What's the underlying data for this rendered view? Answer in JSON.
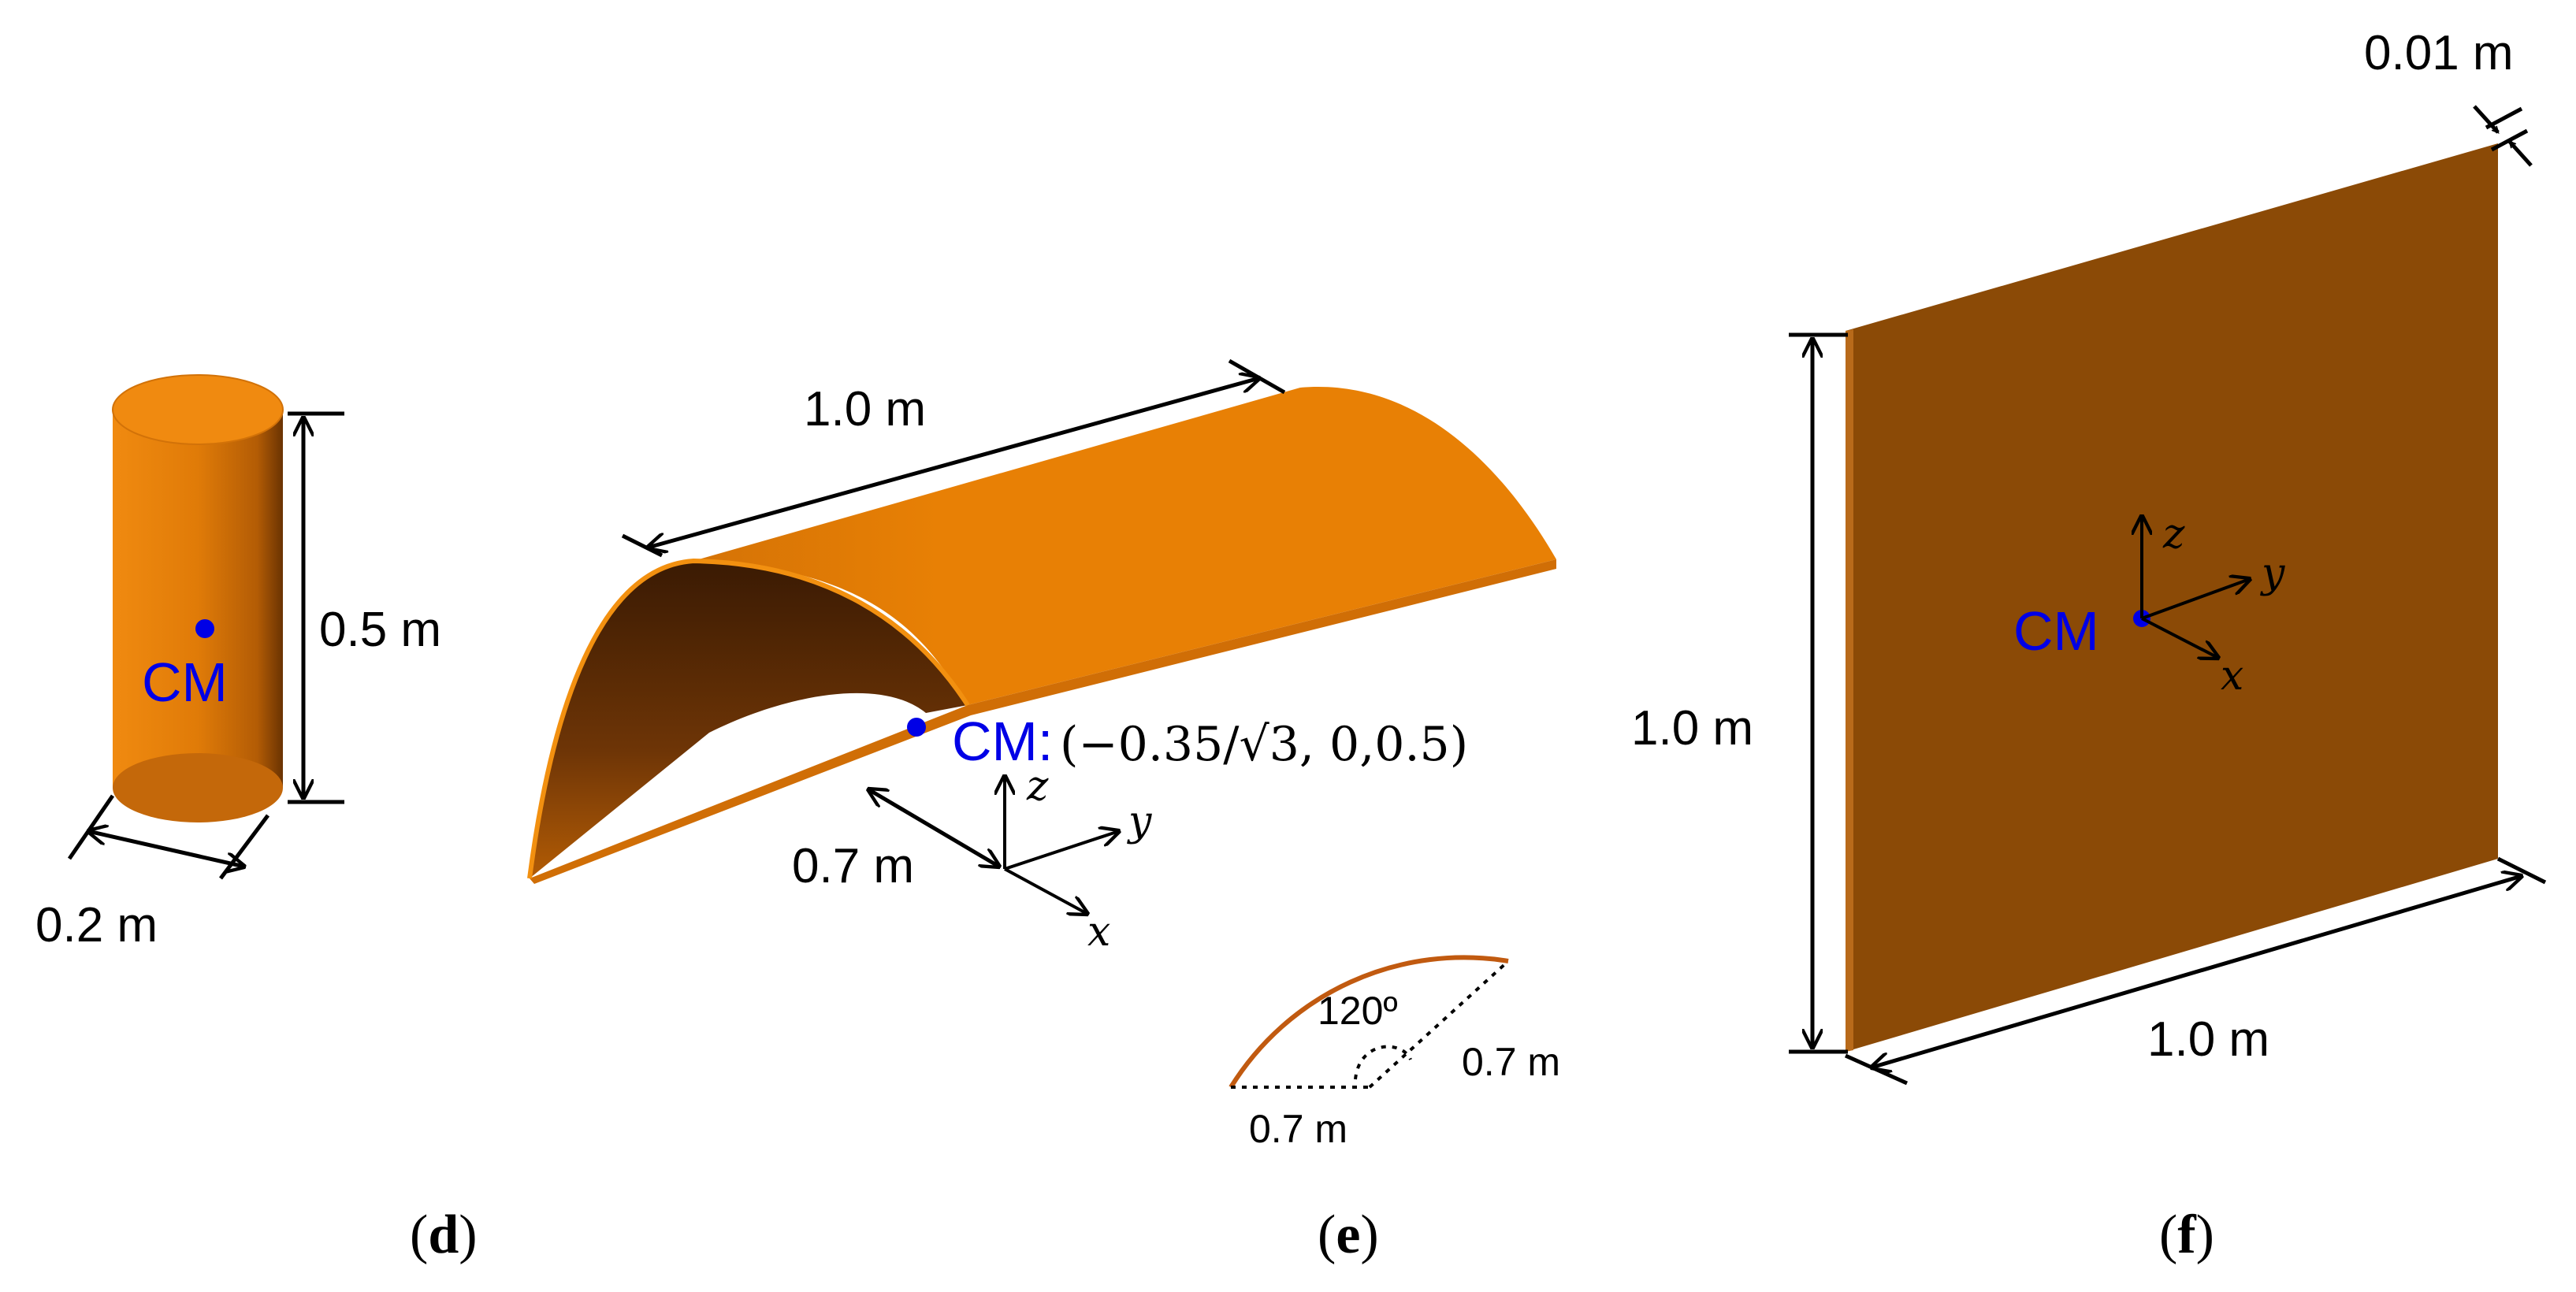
{
  "panel_d": {
    "caption_open": "(",
    "caption_letter": "d",
    "caption_close": ")",
    "height_label": "0.5 m",
    "diameter_label": "0.2 m",
    "cm_label": "CM",
    "colors": {
      "body": "#e07b08",
      "cm": "#0000e6"
    }
  },
  "panel_e": {
    "caption_open": "(",
    "caption_letter": "e",
    "caption_close": ")",
    "length_label": "1.0 m",
    "radius_label": "0.7 m",
    "cm_label": "CM:",
    "cm_coords": "(−0.35/√3, 0,0.5)",
    "axis_x": "x",
    "axis_y": "y",
    "axis_z": "z",
    "inset_angle_label": "120º",
    "inset_radius_label_1": "0.7 m",
    "inset_radius_label_2": "0.7 m",
    "colors": {
      "body": "#e88005",
      "inner": "#5a2a05",
      "arc": "#c15a10"
    }
  },
  "panel_f": {
    "caption_open": "(",
    "caption_letter": "f",
    "caption_close": ")",
    "thickness_label": "0.01 m",
    "height_label": "1.0 m",
    "width_label": "1.0 m",
    "cm_label": "CM",
    "axis_x": "x",
    "axis_y": "y",
    "axis_z": "z",
    "colors": {
      "face": "#8b4a06"
    }
  }
}
